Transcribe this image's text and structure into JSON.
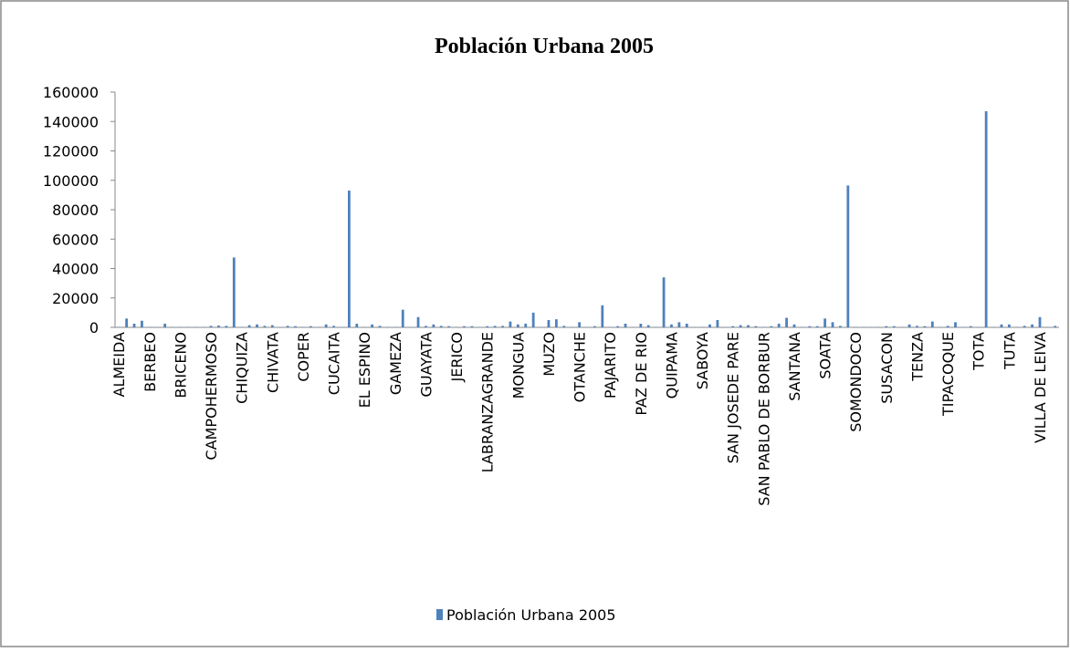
{
  "chart_data": {
    "type": "bar",
    "title": "Población Urbana 2005",
    "categories": [
      "ALMEIDA",
      null,
      null,
      null,
      "BERBEO",
      null,
      null,
      null,
      "BRICENO",
      null,
      null,
      null,
      "CAMPOHERMOSO",
      null,
      null,
      null,
      "CHIQUIZA",
      null,
      null,
      null,
      "CHIVATA",
      null,
      null,
      null,
      "COPER",
      null,
      null,
      null,
      "CUCAITA",
      null,
      null,
      null,
      "EL ESPINO",
      null,
      null,
      null,
      "GAMEZA",
      null,
      null,
      null,
      "GUAYATA",
      null,
      null,
      null,
      "JERICO",
      null,
      null,
      null,
      "LABRANZAGRANDE",
      null,
      null,
      null,
      "MONGUA",
      null,
      null,
      null,
      "MUZO",
      null,
      null,
      null,
      "OTANCHE",
      null,
      null,
      null,
      "PAJARITO",
      null,
      null,
      null,
      "PAZ DE RIO",
      null,
      null,
      null,
      "QUIPAMA",
      null,
      null,
      null,
      "SABOYA",
      null,
      null,
      null,
      "SAN JOSEDE PARE",
      null,
      null,
      null,
      "SAN PABLO DE BORBUR",
      null,
      null,
      null,
      "SANTANA",
      null,
      null,
      null,
      "SOATA",
      null,
      null,
      null,
      "SOMONDOCO",
      null,
      null,
      null,
      "SUSACON",
      null,
      null,
      null,
      "TENZA",
      null,
      null,
      null,
      "TIPACOQUE",
      null,
      null,
      null,
      "TOTA",
      null,
      null,
      null,
      "TUTA",
      null,
      null,
      null,
      "VILLA DE LEIVA",
      null,
      null
    ],
    "series": [
      {
        "name": "Población Urbana 2005",
        "color": "#4f81bd",
        "values": [
          300,
          6000,
          2500,
          4500,
          300,
          300,
          2500,
          300,
          300,
          300,
          300,
          300,
          1000,
          1200,
          1000,
          47500,
          300,
          1500,
          2000,
          1000,
          1500,
          300,
          1000,
          800,
          300,
          800,
          300,
          2000,
          1000,
          300,
          93000,
          2500,
          300,
          2000,
          1000,
          300,
          300,
          12000,
          300,
          7000,
          1000,
          2000,
          1000,
          800,
          300,
          800,
          800,
          300,
          800,
          1000,
          1000,
          4000,
          2000,
          2500,
          10000,
          300,
          5000,
          5500,
          1000,
          300,
          3500,
          300,
          800,
          15000,
          300,
          800,
          2500,
          300,
          2500,
          1500,
          300,
          34000,
          2000,
          3500,
          2500,
          300,
          300,
          2000,
          5000,
          300,
          800,
          1500,
          1500,
          800,
          300,
          800,
          2500,
          6500,
          2000,
          300,
          800,
          800,
          6000,
          3500,
          1000,
          96500,
          300,
          300,
          300,
          300,
          800,
          800,
          300,
          2000,
          1000,
          800,
          4000,
          300,
          1000,
          3500,
          300,
          800,
          300,
          147000,
          300,
          2000,
          2000,
          300,
          1000,
          2000,
          7000,
          300,
          1000
        ]
      }
    ],
    "ylim": [
      0,
      160000
    ],
    "yticks": [
      0,
      20000,
      40000,
      60000,
      80000,
      100000,
      120000,
      140000,
      160000
    ],
    "legend": "bottom"
  }
}
